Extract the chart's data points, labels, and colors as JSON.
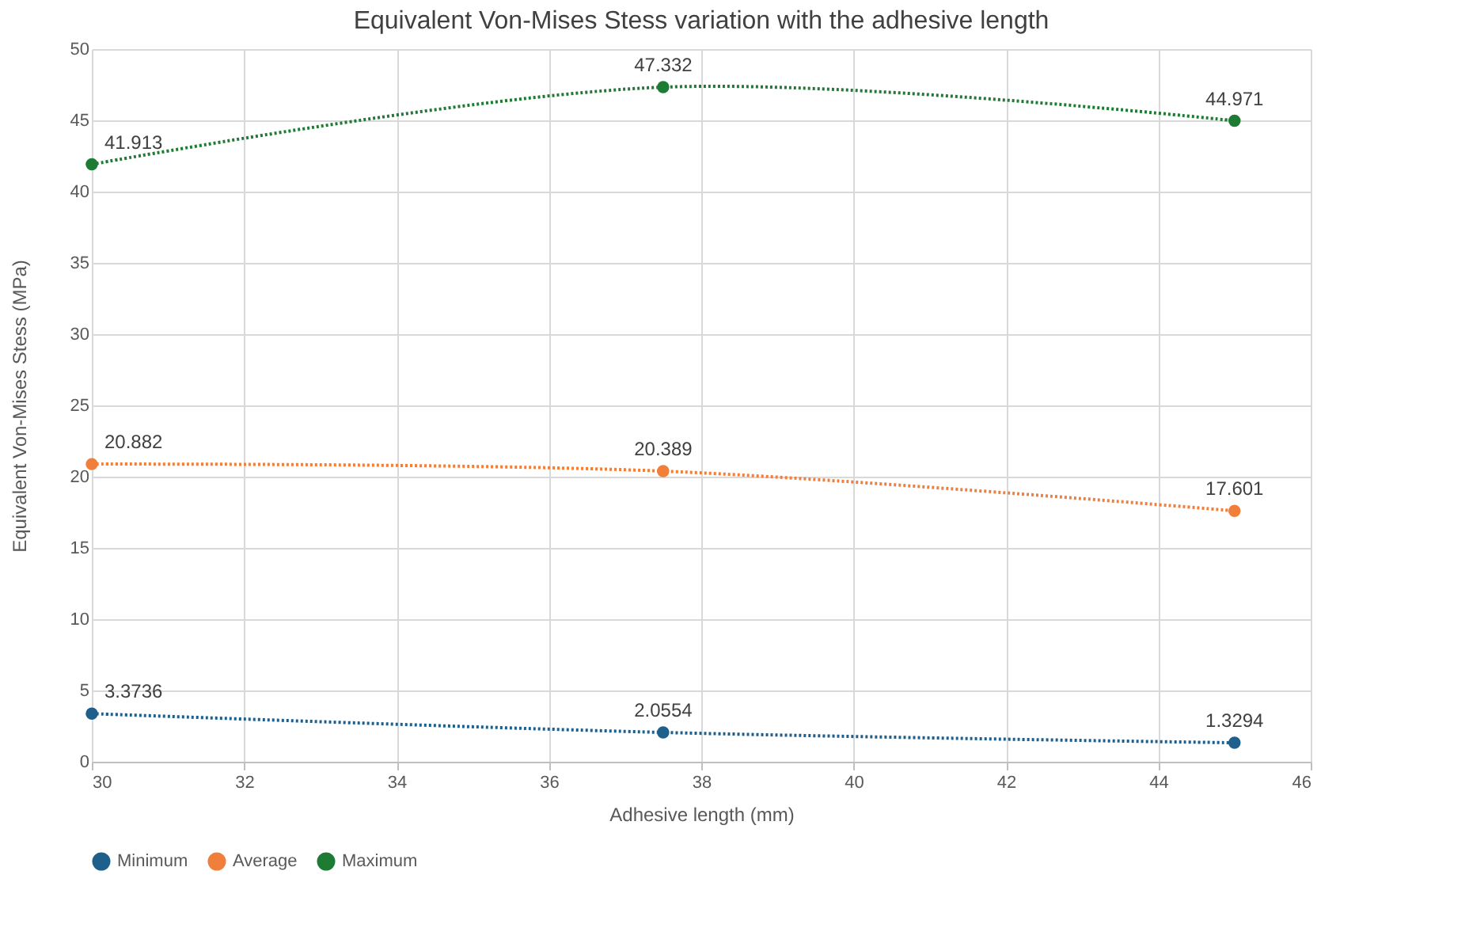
{
  "chart_data": {
    "type": "line",
    "title": "Equivalent Von-Mises Stess variation with the adhesive length",
    "xlabel": "Adhesive length (mm)",
    "ylabel": "Equivalent Von-Mises Stess (MPa)",
    "x": [
      30,
      37.5,
      45
    ],
    "series": [
      {
        "name": "Minimum",
        "color": "#1f5f8b",
        "values": [
          3.3736,
          2.0554,
          1.3294
        ]
      },
      {
        "name": "Average",
        "color": "#f07f3c",
        "values": [
          20.882,
          20.389,
          17.601
        ]
      },
      {
        "name": "Maximum",
        "color": "#1e7b34",
        "values": [
          41.913,
          47.332,
          44.971
        ]
      }
    ],
    "xlim": [
      30,
      46
    ],
    "xticks": [
      30,
      32,
      34,
      36,
      38,
      40,
      42,
      44,
      46
    ],
    "ylim": [
      0,
      50
    ],
    "yticks": [
      0,
      5,
      10,
      15,
      20,
      25,
      30,
      35,
      40,
      45,
      50
    ],
    "grid": true,
    "legend": "bottom",
    "marker": "circle",
    "line_style": "dotted",
    "data_labels": true
  }
}
